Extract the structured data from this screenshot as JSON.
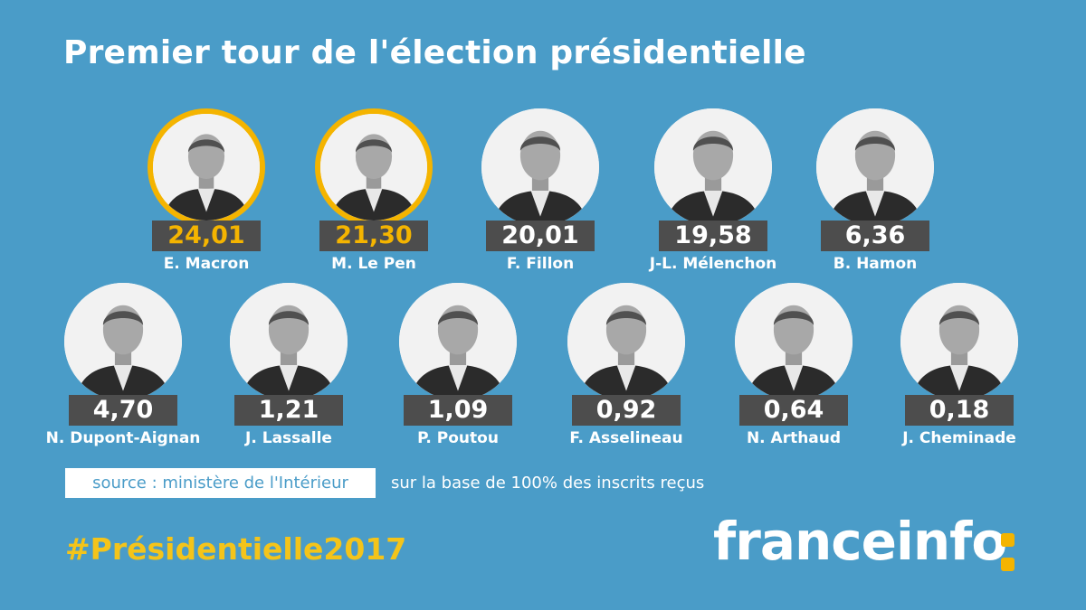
{
  "title": "Premier tour de l'élection présidentielle",
  "colors": {
    "background": "#4a9cc8",
    "highlight": "#f4b400",
    "score_box": "#4d4d4d"
  },
  "candidates": [
    {
      "name": "E. Macron",
      "score": "24,01",
      "qualified": true
    },
    {
      "name": "M. Le Pen",
      "score": "21,30",
      "qualified": true
    },
    {
      "name": "F. Fillon",
      "score": "20,01",
      "qualified": false
    },
    {
      "name": "J-L. Mélenchon",
      "score": "19,58",
      "qualified": false
    },
    {
      "name": "B. Hamon",
      "score": "6,36",
      "qualified": false
    },
    {
      "name": "N. Dupont-Aignan",
      "score": "4,70",
      "qualified": false
    },
    {
      "name": "J. Lassalle",
      "score": "1,21",
      "qualified": false
    },
    {
      "name": "P. Poutou",
      "score": "1,09",
      "qualified": false
    },
    {
      "name": "F. Asselineau",
      "score": "0,92",
      "qualified": false
    },
    {
      "name": "N. Arthaud",
      "score": "0,64",
      "qualified": false
    },
    {
      "name": "J. Cheminade",
      "score": "0,18",
      "qualified": false
    }
  ],
  "source": "source : ministère de l'Intérieur",
  "source_note": "sur la base de 100% des inscrits reçus",
  "hashtag": "#Présidentielle2017",
  "brand": "franceinfo"
}
